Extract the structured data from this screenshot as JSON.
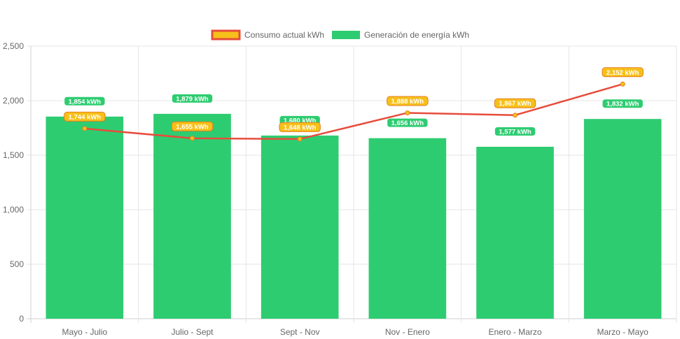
{
  "chart_data": {
    "type": "bar",
    "categories": [
      "Mayo - Julio",
      "Julio - Sept",
      "Sept - Nov",
      "Nov - Enero",
      "Enero - Marzo",
      "Marzo - Mayo"
    ],
    "ylim": [
      0,
      2500
    ],
    "yticks": [
      "0",
      "500",
      "1,000",
      "1,500",
      "2,000",
      "2,500"
    ],
    "grid": true,
    "legend_position": "top",
    "series": [
      {
        "name": "Consumo actual kWh",
        "type": "line",
        "color": "#e74c3c",
        "fill": "#f6c019",
        "values": [
          1744,
          1655,
          1648,
          1888,
          1867,
          2152
        ],
        "labels": [
          "1,744 kWh",
          "1,655 kWh",
          "1,648 kWh",
          "1,888 kWh",
          "1,867 kWh",
          "2,152 kWh"
        ]
      },
      {
        "name": "Generación de energía kWh",
        "type": "bar",
        "color": "#2ecc71",
        "values": [
          1854,
          1879,
          1680,
          1656,
          1577,
          1832
        ],
        "labels": [
          "1,854 kWh",
          "1,879 kWh",
          "1,680 kWh",
          "1,656 kWh",
          "1,577 kWh",
          "1,832 kWh"
        ]
      }
    ]
  }
}
